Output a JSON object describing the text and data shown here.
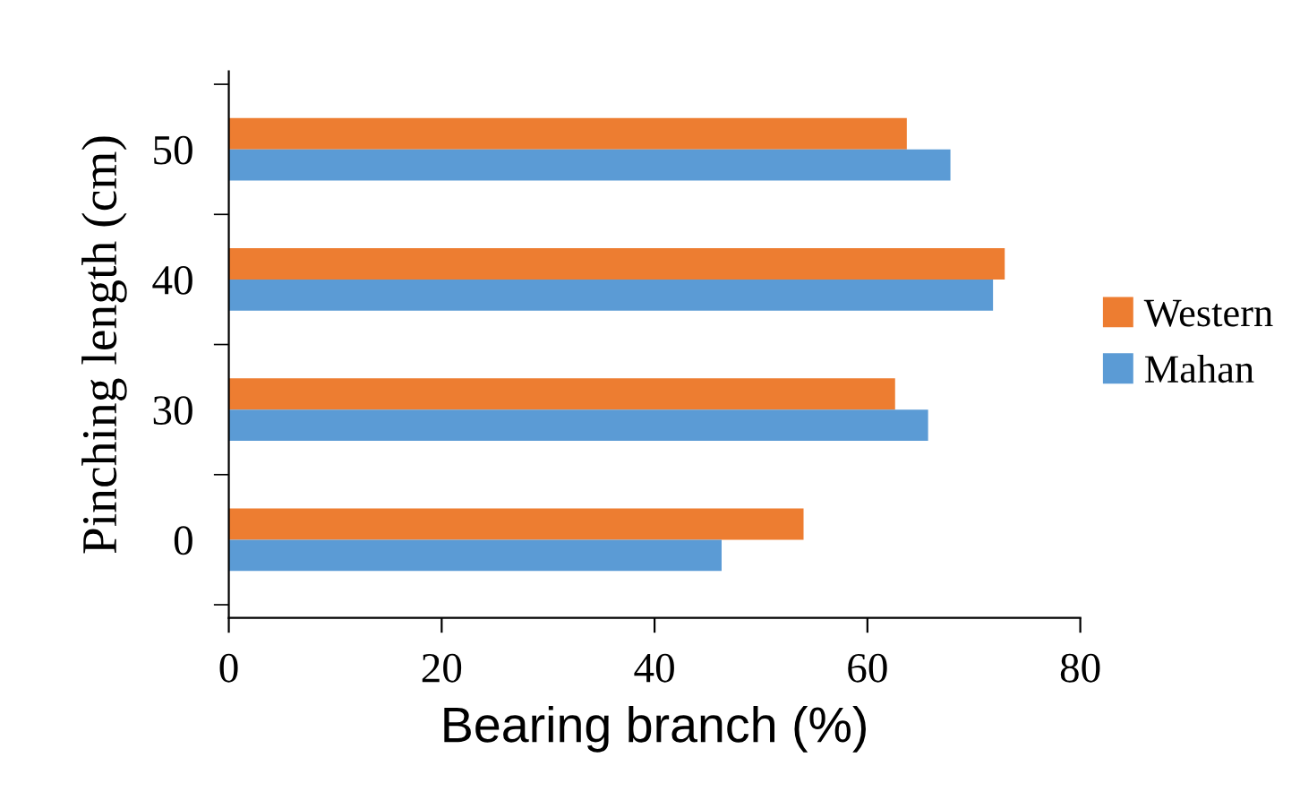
{
  "chart_data": {
    "type": "bar",
    "orientation": "horizontal",
    "xlabel": "Bearing branch (%)",
    "ylabel": "Pinching length (cm)",
    "categories": [
      "50",
      "40",
      "30",
      "0"
    ],
    "series": [
      {
        "name": "Western",
        "color": "#ed7d31",
        "values": [
          63.7,
          72.9,
          62.6,
          54.0
        ]
      },
      {
        "name": "Mahan",
        "color": "#5b9bd5",
        "values": [
          67.8,
          71.8,
          65.7,
          46.3
        ]
      }
    ],
    "xlim": [
      0,
      80
    ],
    "xticks": [
      0,
      20,
      40,
      60,
      80
    ],
    "grid": false,
    "legend": "right"
  }
}
